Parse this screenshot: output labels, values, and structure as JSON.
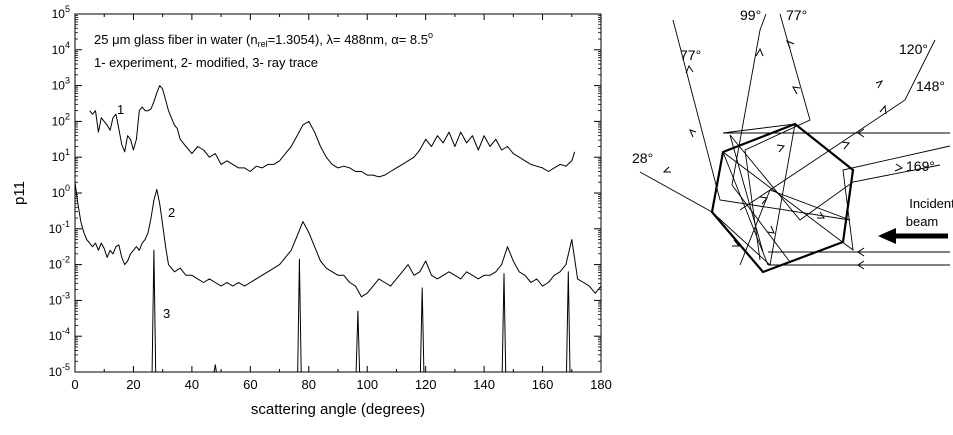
{
  "chart_data": {
    "type": "line",
    "title": "",
    "xlabel": "scattering angle (degrees)",
    "ylabel": "p11",
    "xlim": [
      0,
      180
    ],
    "ylim_exponent": [
      -5,
      5
    ],
    "yscale": "log",
    "x_ticks": [
      "0",
      "20",
      "40",
      "60",
      "80",
      "100",
      "120",
      "140",
      "160",
      "180"
    ],
    "y_tick_base": "10",
    "y_tick_exponents": [
      "-5",
      "-4",
      "-3",
      "-2",
      "-1",
      "0",
      "1",
      "2",
      "3",
      "4",
      "5"
    ],
    "grid": false,
    "legend": {
      "line1_prefix": "25 ",
      "line1_mu": "μ",
      "line1_mid": "m glass fiber in water (n",
      "line1_sub": "rel",
      "line1_mid2": "=1.3054), ",
      "line1_lambda": "λ",
      "line1_mid3": "= 488nm, ",
      "line1_alpha": "α",
      "line1_end": "= 8.5",
      "line1_deg": "o",
      "line2": "1- experiment, 2- modified, 3- ray trace"
    },
    "series": [
      {
        "label": "1",
        "x": [
          5,
          6,
          7,
          8,
          9,
          10,
          11,
          12,
          13,
          14,
          15,
          16,
          17,
          18,
          19,
          20,
          21,
          22,
          23,
          24,
          25,
          26,
          27,
          28,
          29,
          30,
          31,
          32,
          33,
          34,
          35,
          36,
          37,
          38,
          39,
          40,
          42,
          44,
          46,
          48,
          50,
          52,
          54,
          56,
          58,
          60,
          62,
          64,
          66,
          68,
          70,
          72,
          74,
          76,
          78,
          80,
          82,
          84,
          86,
          88,
          90,
          92,
          94,
          96,
          98,
          100,
          102,
          104,
          106,
          108,
          110,
          112,
          114,
          116,
          118,
          120,
          122,
          124,
          126,
          128,
          130,
          132,
          134,
          136,
          138,
          140,
          142,
          144,
          146,
          148,
          150,
          152,
          154,
          156,
          158,
          160,
          162,
          164,
          166,
          168,
          170,
          171
        ],
        "log_y": [
          2.3,
          2.2,
          2.3,
          1.7,
          2.1,
          2.0,
          1.9,
          1.75,
          2.1,
          2.2,
          1.8,
          1.35,
          1.15,
          1.6,
          1.5,
          1.2,
          1.5,
          2.3,
          2.4,
          2.3,
          2.3,
          2.35,
          2.55,
          2.8,
          3.0,
          2.9,
          2.6,
          2.3,
          2.1,
          1.9,
          1.8,
          1.5,
          1.4,
          1.3,
          1.2,
          1.1,
          1.3,
          1.2,
          1.0,
          1.1,
          0.8,
          0.9,
          0.8,
          0.7,
          0.7,
          0.6,
          0.75,
          0.7,
          0.8,
          0.8,
          0.9,
          1.1,
          1.3,
          1.6,
          1.9,
          2.0,
          1.7,
          1.3,
          1.0,
          0.8,
          0.7,
          0.75,
          0.7,
          0.6,
          0.6,
          0.5,
          0.5,
          0.45,
          0.5,
          0.6,
          0.7,
          0.8,
          0.9,
          1.0,
          1.2,
          1.5,
          1.3,
          1.6,
          1.4,
          1.7,
          1.3,
          1.7,
          1.4,
          1.6,
          1.2,
          1.6,
          1.3,
          1.5,
          1.2,
          1.3,
          1.1,
          1.0,
          0.9,
          0.8,
          0.75,
          0.7,
          0.6,
          0.7,
          0.8,
          0.75,
          0.9,
          1.15
        ]
      },
      {
        "label": "2",
        "x": [
          0,
          1,
          2,
          3,
          4,
          5,
          6,
          7,
          8,
          9,
          10,
          11,
          12,
          13,
          14,
          15,
          16,
          17,
          18,
          19,
          20,
          21,
          22,
          23,
          24,
          25,
          26,
          27,
          28,
          29,
          30,
          31,
          32,
          34,
          36,
          38,
          40,
          42,
          44,
          46,
          48,
          50,
          52,
          54,
          56,
          58,
          60,
          62,
          64,
          66,
          68,
          70,
          72,
          74,
          76,
          78,
          80,
          82,
          84,
          86,
          88,
          90,
          92,
          94,
          96,
          98,
          100,
          102,
          104,
          106,
          108,
          110,
          112,
          114,
          116,
          118,
          120,
          122,
          124,
          126,
          128,
          130,
          132,
          134,
          136,
          138,
          140,
          142,
          144,
          146,
          148,
          150,
          152,
          154,
          156,
          158,
          160,
          162,
          164,
          166,
          168,
          170,
          172,
          174,
          176,
          178,
          180
        ],
        "log_y": [
          0.3,
          -0.3,
          -0.8,
          -1.1,
          -1.3,
          -1.4,
          -1.5,
          -1.4,
          -1.6,
          -1.4,
          -1.55,
          -1.8,
          -1.6,
          -1.7,
          -1.5,
          -1.45,
          -1.8,
          -2.0,
          -1.9,
          -1.7,
          -1.6,
          -1.5,
          -1.6,
          -1.4,
          -1.3,
          -1.1,
          -0.7,
          -0.2,
          0.1,
          -0.3,
          -0.9,
          -1.5,
          -2.0,
          -2.2,
          -2.1,
          -2.3,
          -2.3,
          -2.4,
          -2.5,
          -2.4,
          -2.5,
          -2.6,
          -2.5,
          -2.6,
          -2.5,
          -2.6,
          -2.5,
          -2.4,
          -2.3,
          -2.2,
          -2.1,
          -2.0,
          -1.8,
          -1.6,
          -1.2,
          -0.8,
          -1.1,
          -1.5,
          -1.9,
          -2.1,
          -2.2,
          -2.3,
          -2.3,
          -2.5,
          -2.6,
          -2.9,
          -2.8,
          -2.6,
          -2.4,
          -2.5,
          -2.6,
          -2.4,
          -2.2,
          -2.0,
          -2.3,
          -2.2,
          -1.9,
          -2.3,
          -2.4,
          -2.3,
          -2.2,
          -2.3,
          -2.4,
          -2.2,
          -2.3,
          -2.4,
          -2.3,
          -2.3,
          -2.2,
          -2.0,
          -1.5,
          -1.9,
          -2.2,
          -2.3,
          -2.5,
          -2.4,
          -2.6,
          -2.5,
          -2.3,
          -2.2,
          -2.0,
          -1.3,
          -2.4,
          -2.5,
          -2.6,
          -2.8,
          -2.6
        ]
      },
      {
        "label": "3",
        "x": [
          0,
          26.4,
          27.0,
          27.6,
          28.2,
          29,
          47.6,
          48,
          48.4,
          49,
          76.2,
          76.8,
          77.4,
          78,
          96.2,
          96.8,
          97.4,
          98,
          118.2,
          118.8,
          119.4,
          120,
          146.2,
          146.8,
          147.4,
          148,
          168.2,
          168.8,
          169.4,
          170,
          180
        ],
        "log_y": [
          -5,
          -5,
          -1.6,
          -5,
          -5,
          -5,
          -5,
          -4.8,
          -5,
          -5,
          -5,
          -1.85,
          -5,
          -5,
          -5,
          -3.3,
          -5,
          -5,
          -5,
          -2.65,
          -5,
          -5,
          -5,
          -2.25,
          -5,
          -5,
          -5,
          -2.2,
          -5,
          -5,
          -5
        ]
      }
    ],
    "series_labels": [
      "1",
      "2",
      "3"
    ]
  },
  "diagram": {
    "angle_labels": [
      "77°",
      "99°",
      "77°",
      "120°",
      "148°",
      "28°",
      "169°"
    ],
    "incident_line1": "Incident",
    "incident_line2": "beam"
  }
}
